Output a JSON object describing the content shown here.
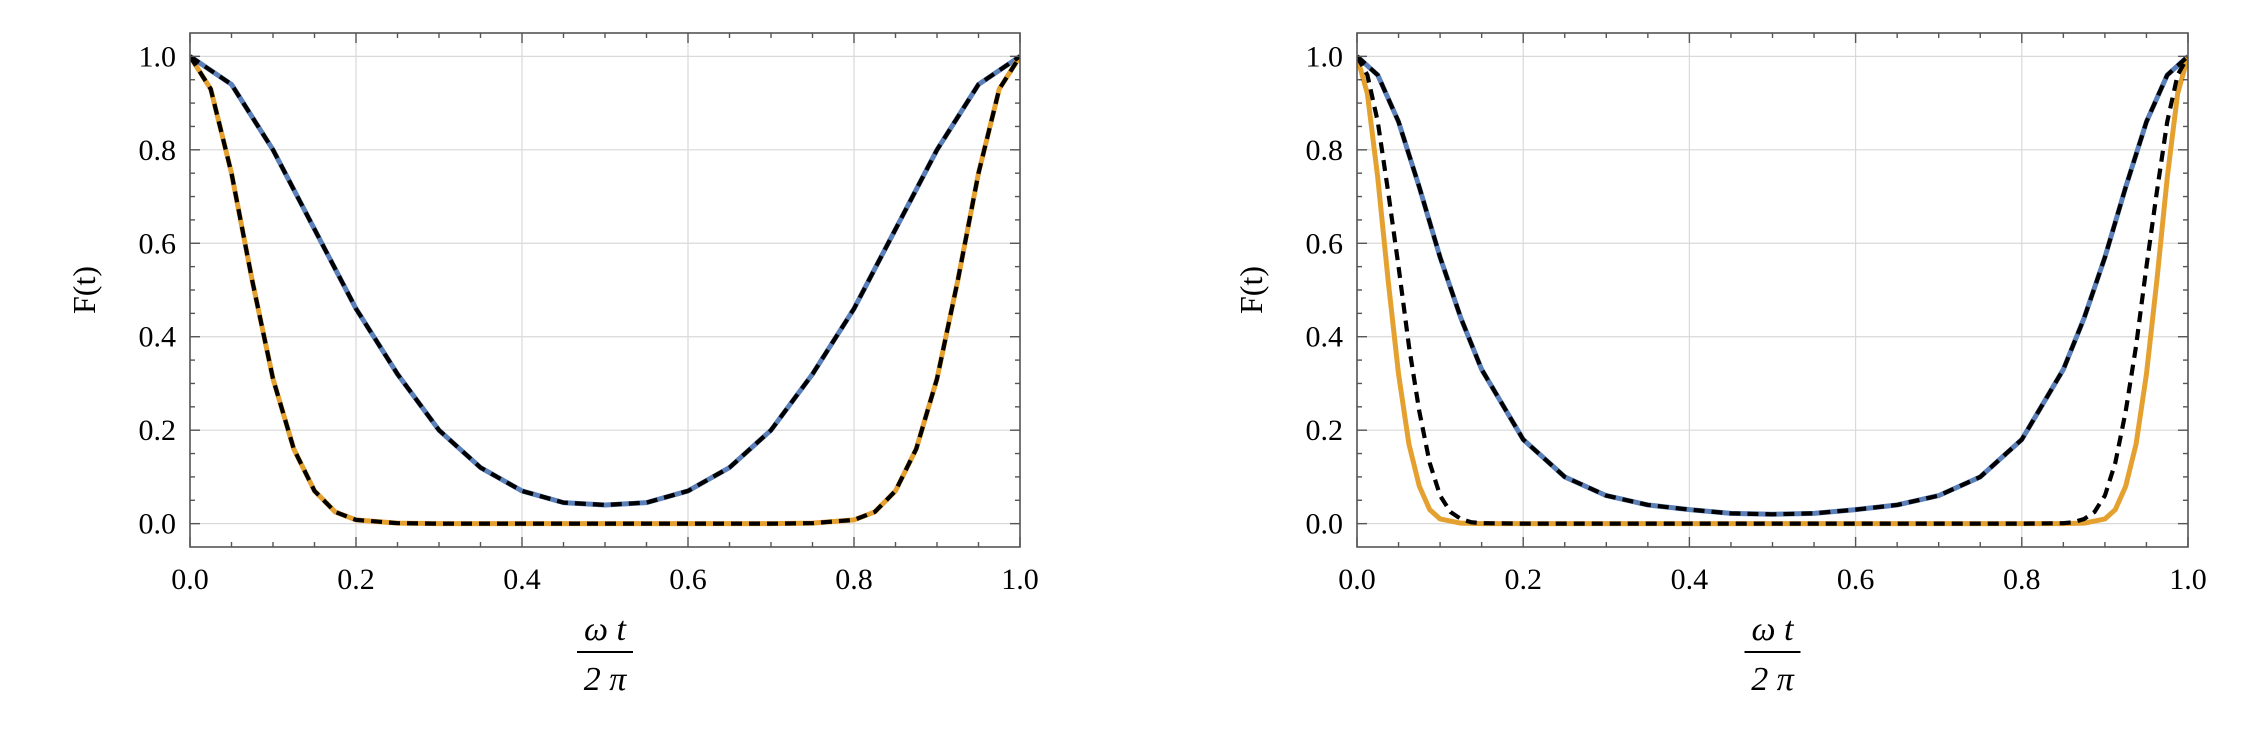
{
  "chart_data": [
    {
      "type": "line",
      "title": "",
      "ylabel": "F(t)",
      "xlabel": {
        "numerator": "ω t",
        "denominator": "2 π"
      },
      "xlim": [
        0.0,
        1.0
      ],
      "ylim": [
        -0.05,
        1.05
      ],
      "grid": true,
      "x_ticks": [
        "0.0",
        "0.2",
        "0.4",
        "0.6",
        "0.8",
        "1.0"
      ],
      "y_ticks": [
        "0.0",
        "0.2",
        "0.4",
        "0.6",
        "0.8",
        "1.0"
      ],
      "series": [
        {
          "name": "blue",
          "color": "#5b80b9",
          "style": "solid",
          "x": [
            0,
            0.05,
            0.1,
            0.15,
            0.2,
            0.25,
            0.3,
            0.35,
            0.4,
            0.45,
            0.5,
            0.55,
            0.6,
            0.65,
            0.7,
            0.75,
            0.8,
            0.85,
            0.9,
            0.95,
            1.0
          ],
          "y": [
            1.0,
            0.94,
            0.8,
            0.63,
            0.46,
            0.32,
            0.2,
            0.12,
            0.07,
            0.045,
            0.04,
            0.045,
            0.07,
            0.12,
            0.2,
            0.32,
            0.46,
            0.63,
            0.8,
            0.94,
            1.0
          ]
        },
        {
          "name": "blue-dashed",
          "color": "#000000",
          "style": "dashed",
          "x": [
            0,
            0.05,
            0.1,
            0.15,
            0.2,
            0.25,
            0.3,
            0.35,
            0.4,
            0.45,
            0.5,
            0.55,
            0.6,
            0.65,
            0.7,
            0.75,
            0.8,
            0.85,
            0.9,
            0.95,
            1.0
          ],
          "y": [
            1.0,
            0.94,
            0.8,
            0.63,
            0.46,
            0.32,
            0.2,
            0.12,
            0.07,
            0.045,
            0.04,
            0.045,
            0.07,
            0.12,
            0.2,
            0.32,
            0.46,
            0.63,
            0.8,
            0.94,
            1.0
          ]
        },
        {
          "name": "orange",
          "color": "#e5a130",
          "style": "solid",
          "x": [
            0,
            0.025,
            0.05,
            0.075,
            0.1,
            0.125,
            0.15,
            0.175,
            0.2,
            0.25,
            0.3,
            0.4,
            0.5,
            0.6,
            0.7,
            0.75,
            0.8,
            0.825,
            0.85,
            0.875,
            0.9,
            0.925,
            0.95,
            0.975,
            1.0
          ],
          "y": [
            1.0,
            0.93,
            0.75,
            0.52,
            0.31,
            0.16,
            0.07,
            0.025,
            0.008,
            0.001,
            0,
            0,
            0,
            0,
            0,
            0.001,
            0.008,
            0.025,
            0.07,
            0.16,
            0.31,
            0.52,
            0.75,
            0.93,
            1.0
          ]
        },
        {
          "name": "orange-dashed",
          "color": "#000000",
          "style": "dashed",
          "x": [
            0,
            0.025,
            0.05,
            0.075,
            0.1,
            0.125,
            0.15,
            0.175,
            0.2,
            0.25,
            0.3,
            0.4,
            0.5,
            0.6,
            0.7,
            0.75,
            0.8,
            0.825,
            0.85,
            0.875,
            0.9,
            0.925,
            0.95,
            0.975,
            1.0
          ],
          "y": [
            1.0,
            0.93,
            0.75,
            0.52,
            0.31,
            0.16,
            0.07,
            0.025,
            0.008,
            0.001,
            0,
            0,
            0,
            0,
            0,
            0.001,
            0.008,
            0.025,
            0.07,
            0.16,
            0.31,
            0.52,
            0.75,
            0.93,
            1.0
          ]
        }
      ]
    },
    {
      "type": "line",
      "title": "",
      "ylabel": "F(t)",
      "xlabel": {
        "numerator": "ω t",
        "denominator": "2 π"
      },
      "xlim": [
        0.0,
        1.0
      ],
      "ylim": [
        -0.05,
        1.05
      ],
      "grid": true,
      "x_ticks": [
        "0.0",
        "0.2",
        "0.4",
        "0.6",
        "0.8",
        "1.0"
      ],
      "y_ticks": [
        "0.0",
        "0.2",
        "0.4",
        "0.6",
        "0.8",
        "1.0"
      ],
      "series": [
        {
          "name": "blue",
          "color": "#5b80b9",
          "style": "solid",
          "x": [
            0,
            0.025,
            0.05,
            0.075,
            0.1,
            0.125,
            0.15,
            0.2,
            0.25,
            0.3,
            0.35,
            0.4,
            0.45,
            0.5,
            0.55,
            0.6,
            0.65,
            0.7,
            0.75,
            0.8,
            0.85,
            0.875,
            0.9,
            0.925,
            0.95,
            0.975,
            1.0
          ],
          "y": [
            1.0,
            0.96,
            0.86,
            0.72,
            0.57,
            0.44,
            0.33,
            0.18,
            0.1,
            0.06,
            0.04,
            0.03,
            0.022,
            0.02,
            0.022,
            0.03,
            0.04,
            0.06,
            0.1,
            0.18,
            0.33,
            0.44,
            0.57,
            0.72,
            0.86,
            0.96,
            1.0
          ]
        },
        {
          "name": "blue-dashed",
          "color": "#000000",
          "style": "dashed",
          "x": [
            0,
            0.025,
            0.05,
            0.075,
            0.1,
            0.125,
            0.15,
            0.2,
            0.25,
            0.3,
            0.35,
            0.4,
            0.45,
            0.5,
            0.55,
            0.6,
            0.65,
            0.7,
            0.75,
            0.8,
            0.85,
            0.875,
            0.9,
            0.925,
            0.95,
            0.975,
            1.0
          ],
          "y": [
            1.0,
            0.96,
            0.86,
            0.72,
            0.57,
            0.44,
            0.33,
            0.18,
            0.1,
            0.06,
            0.04,
            0.03,
            0.022,
            0.02,
            0.022,
            0.03,
            0.04,
            0.06,
            0.1,
            0.18,
            0.33,
            0.44,
            0.57,
            0.72,
            0.86,
            0.96,
            1.0
          ]
        },
        {
          "name": "orange",
          "color": "#e5a130",
          "style": "solid",
          "x": [
            0,
            0.0125,
            0.025,
            0.0375,
            0.05,
            0.0625,
            0.075,
            0.0875,
            0.1,
            0.125,
            0.15,
            0.2,
            0.3,
            0.5,
            0.7,
            0.8,
            0.85,
            0.875,
            0.9,
            0.9125,
            0.925,
            0.9375,
            0.95,
            0.9625,
            0.975,
            0.9875,
            1.0
          ],
          "y": [
            1.0,
            0.92,
            0.74,
            0.52,
            0.32,
            0.17,
            0.08,
            0.03,
            0.01,
            0.001,
            0,
            0,
            0,
            0,
            0,
            0,
            0,
            0.001,
            0.01,
            0.03,
            0.08,
            0.17,
            0.32,
            0.52,
            0.74,
            0.92,
            1.0
          ]
        },
        {
          "name": "orange-dashed",
          "color": "#000000",
          "style": "dashed",
          "x": [
            0,
            0.0125,
            0.025,
            0.0375,
            0.05,
            0.0625,
            0.075,
            0.0875,
            0.1,
            0.1125,
            0.125,
            0.1375,
            0.15,
            0.2,
            0.3,
            0.5,
            0.7,
            0.8,
            0.85,
            0.8625,
            0.875,
            0.8875,
            0.9,
            0.9125,
            0.925,
            0.9375,
            0.95,
            0.9625,
            0.975,
            0.9875,
            1.0
          ],
          "y": [
            1.0,
            0.96,
            0.86,
            0.71,
            0.55,
            0.38,
            0.24,
            0.13,
            0.06,
            0.025,
            0.01,
            0.003,
            0.001,
            0,
            0,
            0,
            0,
            0,
            0.001,
            0.003,
            0.01,
            0.025,
            0.06,
            0.13,
            0.24,
            0.38,
            0.55,
            0.71,
            0.86,
            0.96,
            1.0
          ]
        }
      ]
    }
  ]
}
